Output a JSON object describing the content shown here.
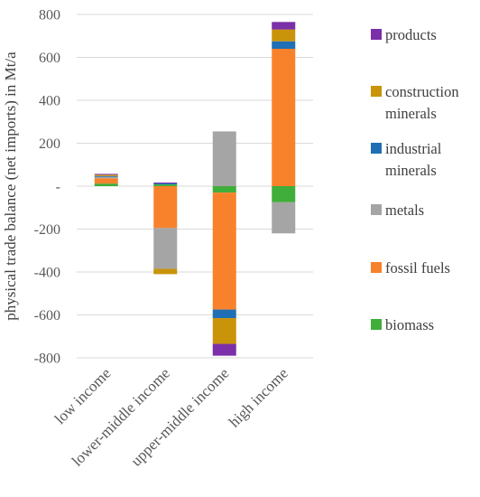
{
  "chart_data": {
    "type": "bar",
    "stacked": true,
    "title": "",
    "xlabel": "",
    "ylabel": "physical trade balance (net imports) in Mt/a",
    "ylim": [
      -800,
      800
    ],
    "yticks": [
      -800,
      -600,
      -400,
      -200,
      0,
      200,
      400,
      600,
      800
    ],
    "ytick_labels": [
      "-800",
      "-600",
      "-400",
      "-200",
      "-",
      "200",
      "400",
      "600",
      "800"
    ],
    "grid": true,
    "legend_position": "right",
    "categories": [
      "low income",
      "lower-middle income",
      "upper-middle income",
      "high income"
    ],
    "series": [
      {
        "name": "biomass",
        "color": "#3fae3a",
        "values": [
          12,
          8,
          -30,
          -75
        ]
      },
      {
        "name": "fossil fuels",
        "color": "#f7822b",
        "values": [
          25,
          -195,
          -545,
          640
        ]
      },
      {
        "name": "metals",
        "color": "#a5a5a5",
        "values": [
          6,
          -190,
          255,
          -145
        ]
      },
      {
        "name": "industrial minerals",
        "color": "#1f6fb5",
        "values": [
          4,
          5,
          -40,
          35
        ]
      },
      {
        "name": "construction minerals",
        "color": "#c9930a",
        "values": [
          6,
          -25,
          -120,
          55
        ]
      },
      {
        "name": "products",
        "color": "#7b2fa8",
        "values": [
          4,
          4,
          -55,
          35
        ]
      }
    ],
    "legend_order": [
      "products",
      "construction\nminerals",
      "industrial\nminerals",
      "metals",
      "fossil fuels",
      "biomass"
    ]
  }
}
